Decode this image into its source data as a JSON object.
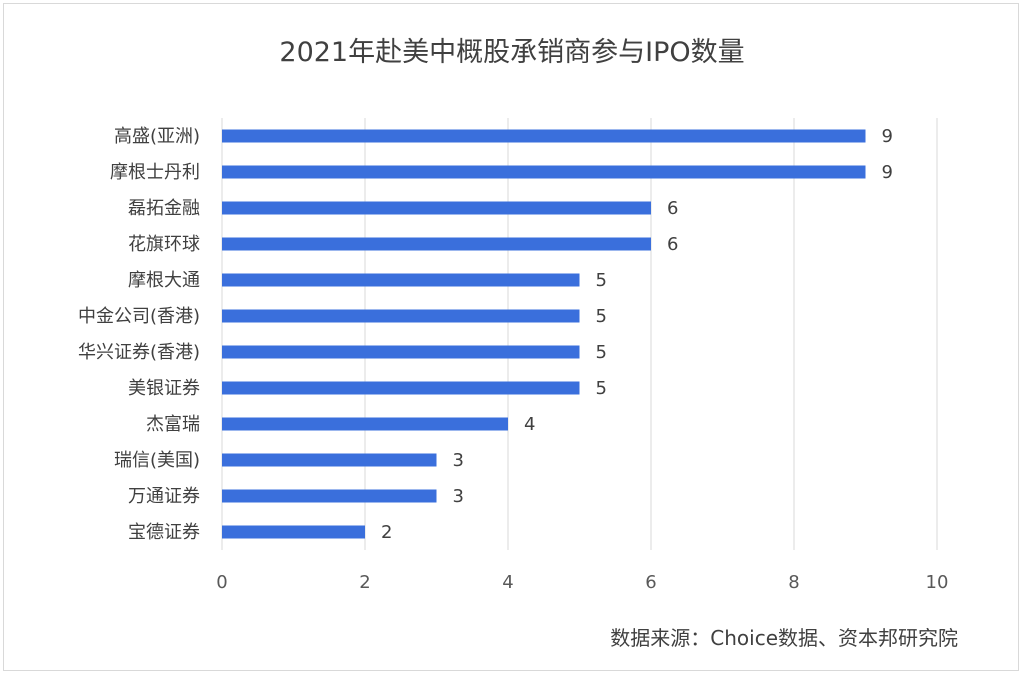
{
  "chart_data": {
    "type": "bar",
    "orientation": "horizontal",
    "title": "2021年赴美中概股承销商参与IPO数量",
    "categories": [
      "高盛(亚洲)",
      "摩根士丹利",
      "磊拓金融",
      "花旗环球",
      "摩根大通",
      "中金公司(香港)",
      "华兴证券(香港)",
      "美银证券",
      "杰富瑞",
      "瑞信(美国)",
      "万通证券",
      "宝德证券"
    ],
    "values": [
      9,
      9,
      6,
      6,
      5,
      5,
      5,
      5,
      4,
      3,
      3,
      2
    ],
    "xlim": [
      0,
      10
    ],
    "xticks": [
      0,
      2,
      4,
      6,
      8,
      10
    ],
    "grid": true,
    "data_labels": true,
    "bar_color": "#3a6fdc",
    "source": "数据来源：Choice数据、资本邦研究院"
  }
}
